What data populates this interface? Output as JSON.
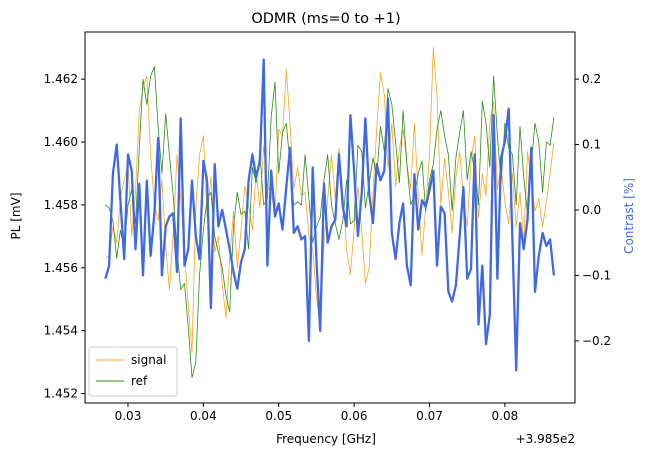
{
  "chart_data": {
    "type": "line",
    "title": "ODMR  (ms=0 to +1)",
    "xlabel": "Frequency [GHz]",
    "ylabel_left": "PL [mV]",
    "ylabel_right": "Contrast [%]",
    "x_offset_label": "+3.985e2",
    "xlim": [
      0.0243,
      0.0893
    ],
    "ylim_left": [
      1.4517,
      1.4635
    ],
    "ylim_right": [
      -0.295,
      0.272
    ],
    "x_ticks": [
      0.03,
      0.04,
      0.05,
      0.06,
      0.07,
      0.08
    ],
    "x_tick_labels": [
      "0.03",
      "0.04",
      "0.05",
      "0.06",
      "0.07",
      "0.08"
    ],
    "y_left_ticks": [
      1.452,
      1.454,
      1.456,
      1.458,
      1.46,
      1.462
    ],
    "y_left_tick_labels": [
      "1.452",
      "1.454",
      "1.456",
      "1.458",
      "1.460",
      "1.462"
    ],
    "y_right_ticks": [
      -0.2,
      -0.1,
      0.0,
      0.1,
      0.2
    ],
    "y_right_tick_labels": [
      "−0.2",
      "−0.1",
      "0.0",
      "0.1",
      "0.2"
    ],
    "grid": false,
    "legend_position": "lower-left",
    "colors": {
      "signal": "#f5a623",
      "ref": "#2e8b1e",
      "contrast": "#4169e1",
      "right_axis_label": "#4169e1"
    },
    "x": [
      0.027,
      0.0275,
      0.028,
      0.0285,
      0.029,
      0.0295,
      0.03,
      0.0305,
      0.031,
      0.0315,
      0.032,
      0.0325,
      0.033,
      0.0335,
      0.034,
      0.0345,
      0.035,
      0.0355,
      0.036,
      0.0365,
      0.037,
      0.0375,
      0.038,
      0.0385,
      0.039,
      0.0395,
      0.04,
      0.0405,
      0.041,
      0.0415,
      0.042,
      0.0425,
      0.043,
      0.0435,
      0.044,
      0.0445,
      0.045,
      0.0455,
      0.046,
      0.0465,
      0.047,
      0.0475,
      0.048,
      0.0485,
      0.049,
      0.0495,
      0.05,
      0.0505,
      0.051,
      0.0515,
      0.052,
      0.0525,
      0.053,
      0.0535,
      0.054,
      0.0545,
      0.055,
      0.0555,
      0.056,
      0.0565,
      0.057,
      0.0575,
      0.058,
      0.0585,
      0.059,
      0.0595,
      0.06,
      0.0605,
      0.061,
      0.0615,
      0.062,
      0.0625,
      0.063,
      0.0635,
      0.064,
      0.0645,
      0.065,
      0.0655,
      0.066,
      0.0665,
      0.067,
      0.0675,
      0.068,
      0.0685,
      0.069,
      0.0695,
      0.07,
      0.0705,
      0.071,
      0.0715,
      0.072,
      0.0725,
      0.073,
      0.0735,
      0.074,
      0.0745,
      0.075,
      0.0755,
      0.076,
      0.0765,
      0.077,
      0.0775,
      0.078,
      0.0785,
      0.079,
      0.0795,
      0.08,
      0.0805,
      0.081,
      0.0815,
      0.082,
      0.0825,
      0.083,
      0.0835,
      0.084,
      0.0845,
      0.085,
      0.0855,
      0.086,
      0.0865
    ],
    "series": [
      {
        "name": "signal",
        "axis": "left",
        "color": "#f5a623",
        "values": [
          1.4563,
          1.4564,
          1.4573,
          1.4568,
          1.4582,
          1.4588,
          1.4593,
          1.457,
          1.4584,
          1.461,
          1.4617,
          1.4621,
          1.4596,
          1.458,
          1.4575,
          1.4588,
          1.4567,
          1.4553,
          1.4571,
          1.4596,
          1.4582,
          1.4565,
          1.4548,
          1.4533,
          1.4579,
          1.4596,
          1.4602,
          1.4576,
          1.4589,
          1.4565,
          1.457,
          1.4555,
          1.4544,
          1.4563,
          1.4578,
          1.456,
          1.4572,
          1.4586,
          1.458,
          1.4572,
          1.4591,
          1.4579,
          1.4599,
          1.4586,
          1.4584,
          1.4577,
          1.4604,
          1.4602,
          1.4623,
          1.4606,
          1.4585,
          1.4592,
          1.4583,
          1.4584,
          1.457,
          1.4566,
          1.4551,
          1.4541,
          1.4568,
          1.4582,
          1.4596,
          1.4582,
          1.4598,
          1.4584,
          1.4566,
          1.4558,
          1.4572,
          1.4586,
          1.4572,
          1.4555,
          1.456,
          1.4584,
          1.4604,
          1.4622,
          1.4615,
          1.4592,
          1.4606,
          1.4586,
          1.4598,
          1.4604,
          1.4593,
          1.4585,
          1.4606,
          1.4583,
          1.4564,
          1.4579,
          1.4596,
          1.463,
          1.4615,
          1.458,
          1.4595,
          1.4584,
          1.4571,
          1.4589,
          1.4597,
          1.4582,
          1.4573,
          1.4594,
          1.4602,
          1.4576,
          1.459,
          1.4583,
          1.4606,
          1.4613,
          1.4585,
          1.4592,
          1.4581,
          1.4574,
          1.459,
          1.4573,
          1.4584,
          1.4568,
          1.4597,
          1.4588,
          1.4578,
          1.4582,
          1.4573,
          1.4581,
          1.459,
          1.46
        ]
      },
      {
        "name": "ref",
        "axis": "left",
        "color": "#2e8b1e",
        "values": [
          1.458,
          1.4579,
          1.4575,
          1.4563,
          1.4572,
          1.4566,
          1.458,
          1.4585,
          1.4574,
          1.4598,
          1.462,
          1.4612,
          1.4621,
          1.4624,
          1.4605,
          1.459,
          1.4609,
          1.4596,
          1.4583,
          1.4566,
          1.4553,
          1.4555,
          1.4541,
          1.4525,
          1.453,
          1.4558,
          1.4572,
          1.4582,
          1.4584,
          1.457,
          1.4565,
          1.456,
          1.4551,
          1.4546,
          1.4573,
          1.4584,
          1.4577,
          1.4578,
          1.4566,
          1.4592,
          1.4587,
          1.4596,
          1.458,
          1.4582,
          1.4608,
          1.4619,
          1.459,
          1.4603,
          1.4606,
          1.4593,
          1.458,
          1.4581,
          1.458,
          1.4596,
          1.4582,
          1.4568,
          1.4573,
          1.4576,
          1.4588,
          1.4596,
          1.458,
          1.4574,
          1.4569,
          1.4575,
          1.4588,
          1.4574,
          1.4575,
          1.4599,
          1.4597,
          1.4579,
          1.4587,
          1.4595,
          1.4589,
          1.4605,
          1.4597,
          1.4617,
          1.4612,
          1.46,
          1.4587,
          1.461,
          1.4593,
          1.458,
          1.4583,
          1.459,
          1.4594,
          1.4578,
          1.4588,
          1.4593,
          1.4604,
          1.461,
          1.4602,
          1.4596,
          1.4578,
          1.4595,
          1.4603,
          1.461,
          1.4588,
          1.4597,
          1.4591,
          1.458,
          1.4613,
          1.4606,
          1.4592,
          1.4621,
          1.4602,
          1.4587,
          1.4606,
          1.4598,
          1.4596,
          1.458,
          1.4605,
          1.4589,
          1.4577,
          1.4593,
          1.4606,
          1.46,
          1.4584,
          1.46,
          1.4599,
          1.4608
        ]
      },
      {
        "name": "contrast",
        "axis": "right",
        "color": "#4169e1",
        "values": [
          -0.105,
          -0.085,
          0.055,
          0.1,
          0.015,
          -0.075,
          0.085,
          0.06,
          -0.06,
          0.04,
          -0.1,
          0.045,
          -0.07,
          -0.005,
          0.11,
          -0.1,
          -0.025,
          -0.01,
          -0.005,
          -0.095,
          0.14,
          -0.085,
          -0.06,
          0.045,
          -0.04,
          -0.075,
          0.075,
          0.045,
          -0.15,
          0.07,
          -0.025,
          0.0,
          -0.03,
          -0.06,
          -0.095,
          -0.12,
          -0.08,
          -0.06,
          0.045,
          0.085,
          0.05,
          0.075,
          0.23,
          -0.085,
          0.06,
          -0.01,
          0.01,
          -0.03,
          0.035,
          0.095,
          -0.035,
          -0.025,
          -0.045,
          -0.04,
          -0.2,
          0.065,
          -0.075,
          -0.185,
          0.04,
          -0.05,
          -0.025,
          -0.015,
          0.085,
          0.005,
          -0.025,
          0.145,
          0.06,
          -0.04,
          0.025,
          0.14,
          0.025,
          -0.02,
          0.07,
          0.045,
          0.06,
          0.17,
          -0.035,
          -0.075,
          -0.02,
          0.01,
          -0.085,
          -0.115,
          0.055,
          -0.03,
          0.015,
          0.005,
          0.03,
          0.06,
          -0.085,
          0.005,
          -0.005,
          -0.125,
          -0.14,
          -0.115,
          -0.04,
          0.035,
          -0.105,
          -0.09,
          0.085,
          -0.175,
          -0.085,
          -0.205,
          -0.16,
          0.145,
          -0.105,
          0.08,
          0.105,
          0.155,
          -0.045,
          -0.245,
          -0.02,
          -0.06,
          -0.015,
          0.095,
          -0.125,
          -0.07,
          -0.035,
          -0.055,
          -0.045,
          -0.1
        ]
      }
    ],
    "legend": [
      {
        "label": "signal",
        "color": "#f5a623"
      },
      {
        "label": "ref",
        "color": "#2e8b1e"
      }
    ]
  }
}
